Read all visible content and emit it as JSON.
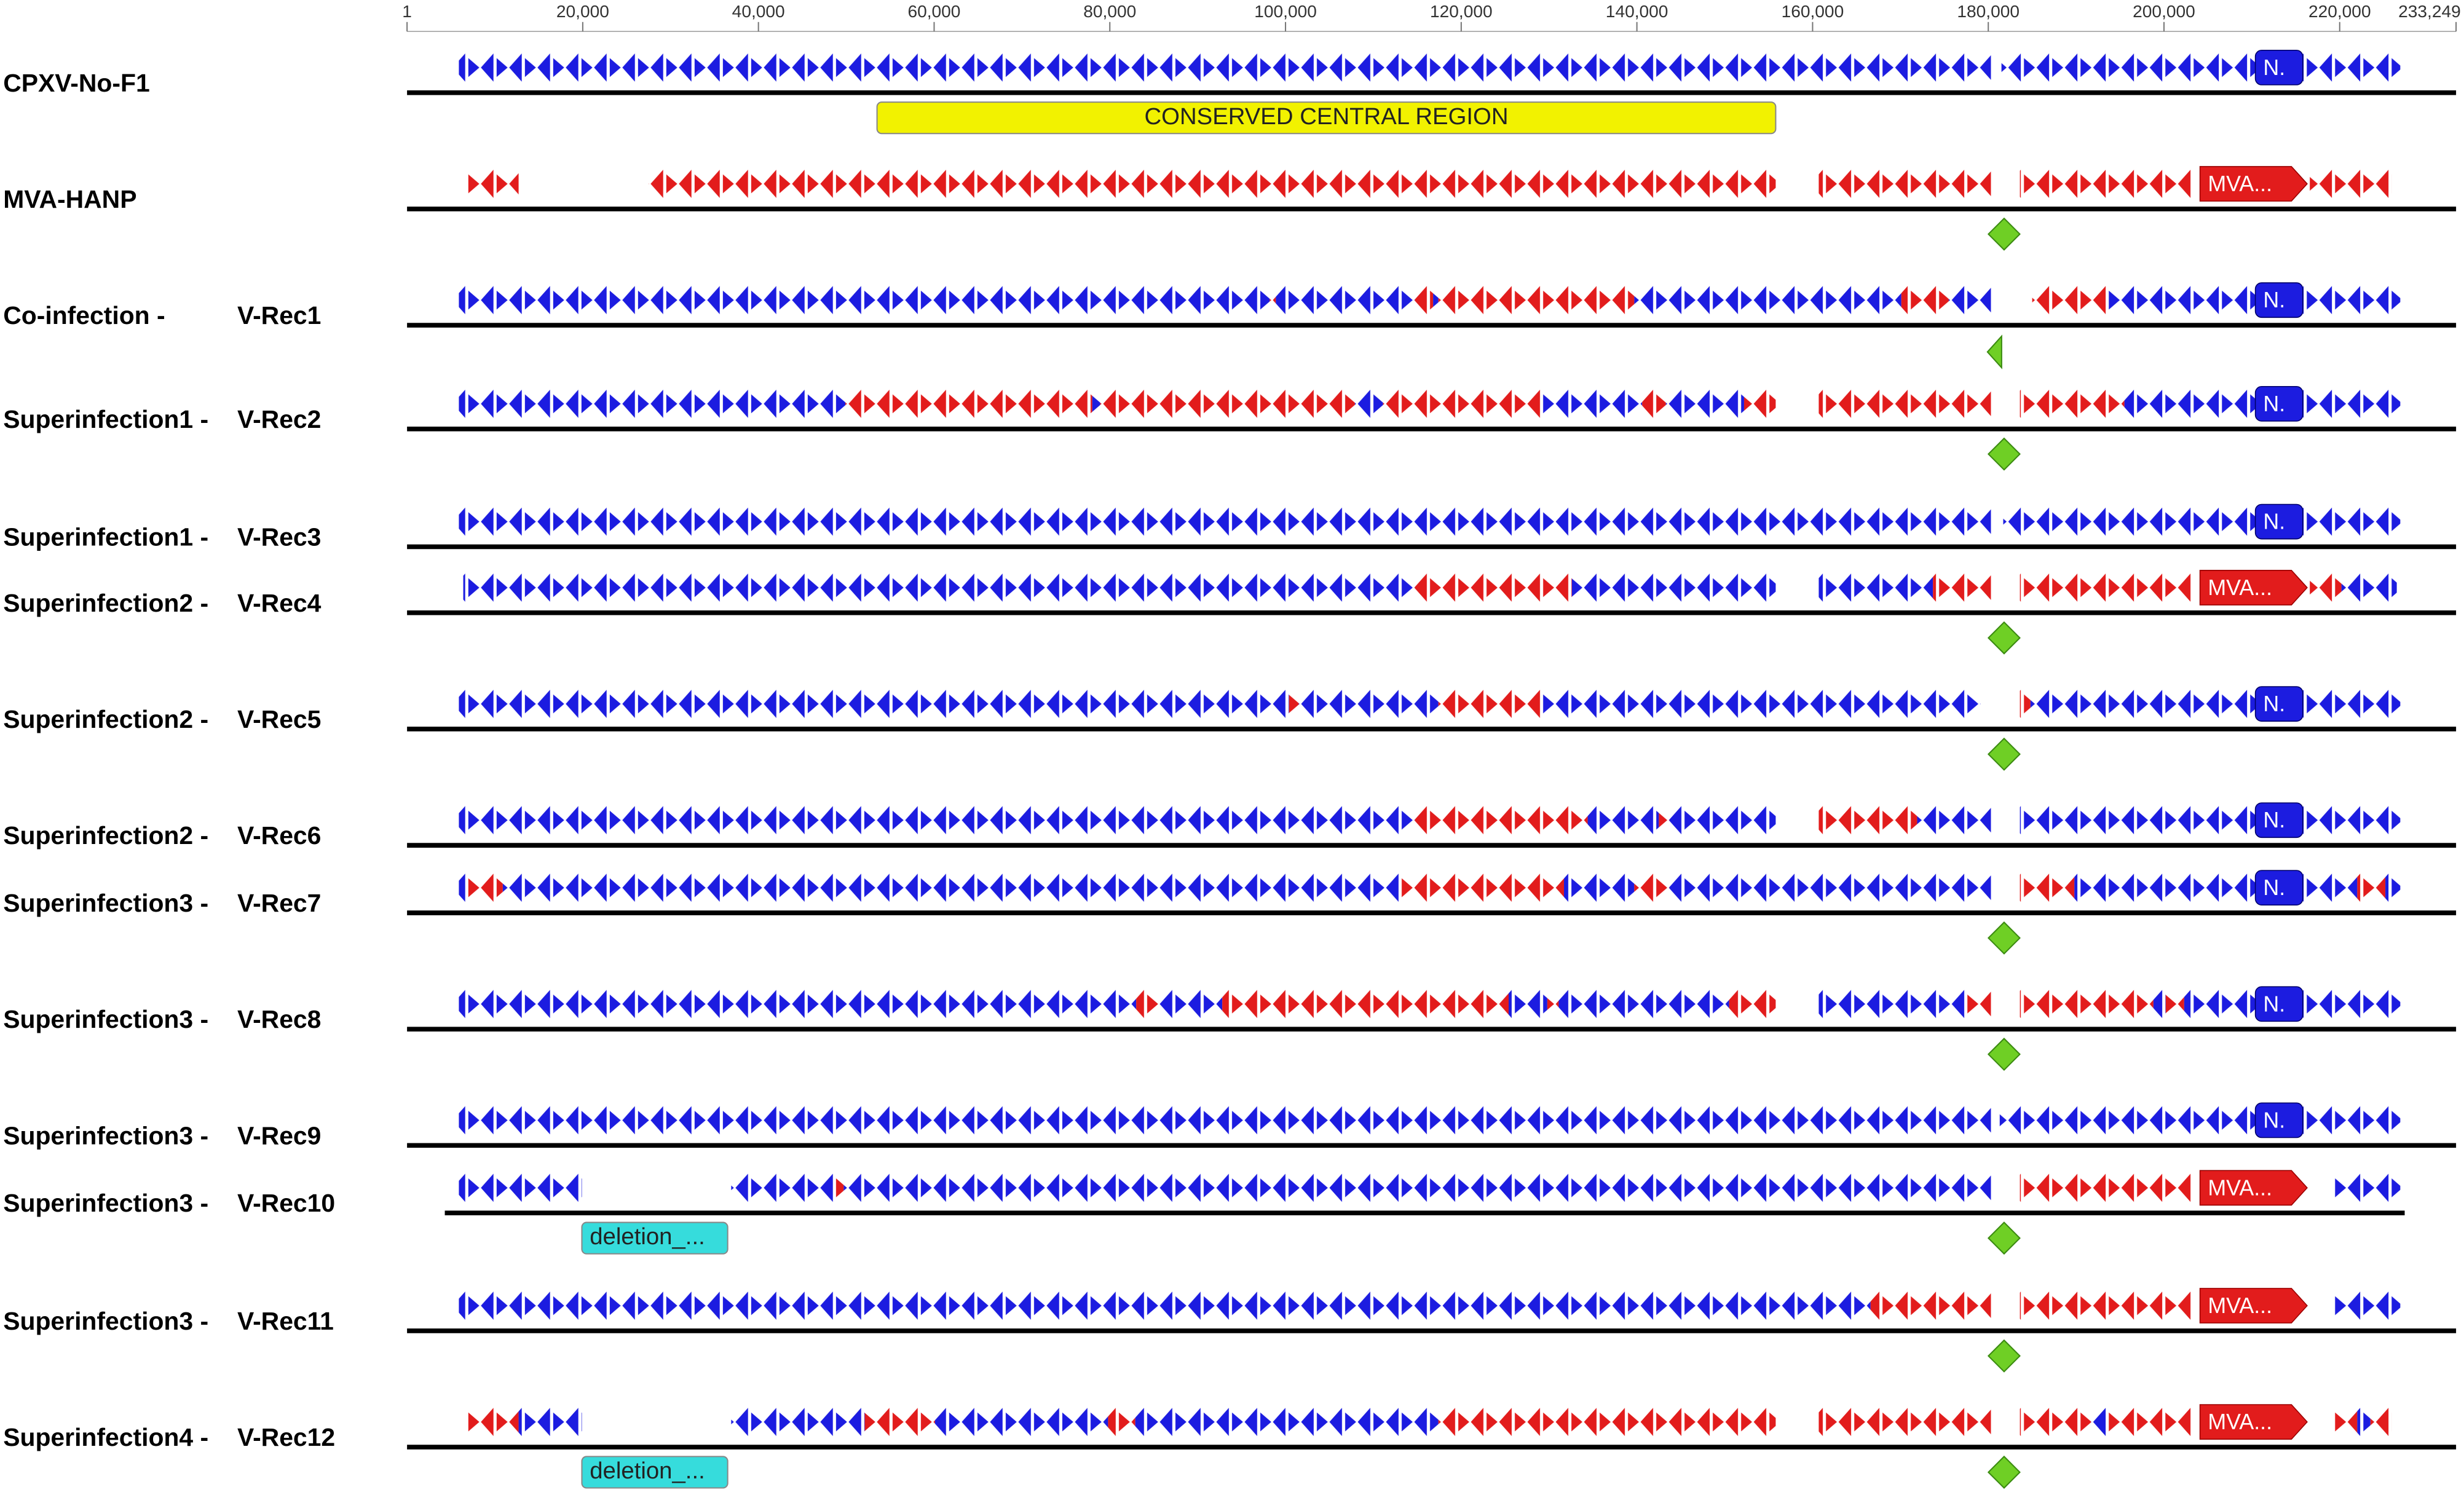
{
  "ruler": {
    "range": [
      1,
      233249
    ],
    "ticks": [
      1,
      {
        "value": 20000,
        "label": "20,000"
      },
      {
        "value": 40000,
        "label": "40,000"
      },
      {
        "value": 60000,
        "label": "60,000"
      },
      {
        "value": 80000,
        "label": "80,000"
      },
      {
        "value": 100000,
        "label": "100,000"
      },
      {
        "value": 120000,
        "label": "120,000"
      },
      {
        "value": 140000,
        "label": "140,000"
      },
      {
        "value": 160000,
        "label": "160,000"
      },
      {
        "value": 180000,
        "label": "180,000"
      },
      {
        "value": 200000,
        "label": "200,000"
      },
      {
        "value": 220000,
        "label": "220,000"
      },
      {
        "value": 233249,
        "label": "233,249"
      }
    ]
  },
  "palette": {
    "b": "#1c1ce0",
    "r": "#e21c1c",
    "g": "#6fcf25",
    "y": "#f2f200",
    "c": "#36dcdc"
  },
  "tracks": [
    {
      "label": "CPXV-No-F1",
      "regions": [
        [
          5900,
          180300,
          "b"
        ],
        [
          181500,
          226900,
          "b"
        ]
      ],
      "features": [
        {
          "label": "N.",
          "start": 210400,
          "end": 215800,
          "color": "b"
        }
      ],
      "under": {
        "label": "CONSERVED CENTRAL REGION",
        "start": 53500,
        "end": 155800,
        "color": "y"
      }
    },
    {
      "label": "MVA-HANP",
      "regions": [
        [
          6800,
          12700,
          "r"
        ],
        [
          27500,
          155800,
          "r"
        ],
        [
          160700,
          180300,
          "r"
        ],
        [
          183600,
          203200,
          "r"
        ],
        [
          216600,
          225900,
          "r"
        ]
      ],
      "features": [
        {
          "label": "MVA...",
          "start": 204100,
          "end": 216300,
          "color": "r"
        }
      ],
      "marker": 181800
    },
    {
      "label": "Co-infection -",
      "name": "V-Rec1",
      "regions": [
        [
          5900,
          98200,
          "b"
        ],
        [
          98200,
          98900,
          "r"
        ],
        [
          98900,
          114700,
          "b"
        ],
        [
          114700,
          116800,
          "r"
        ],
        [
          116800,
          117400,
          "b"
        ],
        [
          117400,
          139700,
          "r"
        ],
        [
          139700,
          170100,
          "b"
        ],
        [
          170100,
          175500,
          "r"
        ],
        [
          175500,
          180300,
          "b"
        ],
        [
          185000,
          193400,
          "r"
        ],
        [
          193400,
          226900,
          "b"
        ]
      ],
      "features": [
        {
          "label": "N.",
          "start": 210400,
          "end": 215800,
          "color": "b"
        }
      ],
      "marker": 180800,
      "marker_shape": "half"
    },
    {
      "label": "Superinfection1 -",
      "name": "V-Rec2",
      "regions": [
        [
          5900,
          49900,
          "b"
        ],
        [
          49900,
          78000,
          "r"
        ],
        [
          78000,
          78900,
          "b"
        ],
        [
          78900,
          107900,
          "r"
        ],
        [
          107900,
          111100,
          "b"
        ],
        [
          111100,
          129000,
          "r"
        ],
        [
          129000,
          140600,
          "b"
        ],
        [
          140600,
          143300,
          "r"
        ],
        [
          143300,
          152200,
          "b"
        ],
        [
          152200,
          155800,
          "r"
        ],
        [
          160700,
          180300,
          "r"
        ],
        [
          183600,
          195500,
          "r"
        ],
        [
          195500,
          226900,
          "b"
        ]
      ],
      "features": [
        {
          "label": "N.",
          "start": 210400,
          "end": 215800,
          "color": "b"
        }
      ],
      "marker": 181800
    },
    {
      "label": "Superinfection1 -",
      "name": "V-Rec3",
      "regions": [
        [
          5900,
          180300,
          "b"
        ],
        [
          181700,
          226900,
          "b"
        ]
      ],
      "features": [
        {
          "label": "N.",
          "start": 210400,
          "end": 215800,
          "color": "b"
        }
      ]
    },
    {
      "label": "Superinfection2 -",
      "name": "V-Rec4",
      "regions": [
        [
          6400,
          114700,
          "b"
        ],
        [
          114700,
          132600,
          "r"
        ],
        [
          132600,
          155800,
          "b"
        ],
        [
          160700,
          173700,
          "b"
        ],
        [
          173700,
          180300,
          "r"
        ],
        [
          183600,
          203200,
          "r"
        ],
        [
          216600,
          220200,
          "r"
        ],
        [
          220200,
          226500,
          "b"
        ]
      ],
      "features": [
        {
          "label": "MVA...",
          "start": 204100,
          "end": 216300,
          "color": "r"
        }
      ],
      "marker": 181800
    },
    {
      "label": "Superinfection2 -",
      "name": "V-Rec5",
      "regions": [
        [
          5900,
          100400,
          "b"
        ],
        [
          100400,
          101500,
          "r"
        ],
        [
          101500,
          117400,
          "b"
        ],
        [
          117400,
          129000,
          "r"
        ],
        [
          129000,
          179100,
          "b"
        ],
        [
          183600,
          184800,
          "r"
        ],
        [
          184800,
          226900,
          "b"
        ]
      ],
      "features": [
        {
          "label": "N.",
          "start": 210400,
          "end": 215800,
          "color": "b"
        }
      ],
      "marker": 181800
    },
    {
      "label": "Superinfection2 -",
      "name": "V-Rec6",
      "regions": [
        [
          5900,
          114700,
          "b"
        ],
        [
          114700,
          134400,
          "r"
        ],
        [
          134400,
          142500,
          "b"
        ],
        [
          142500,
          143700,
          "r"
        ],
        [
          143700,
          155800,
          "b"
        ],
        [
          160700,
          171900,
          "r"
        ],
        [
          171900,
          180300,
          "b"
        ],
        [
          183600,
          226900,
          "b"
        ]
      ],
      "features": [
        {
          "label": "N.",
          "start": 210400,
          "end": 215800,
          "color": "b"
        }
      ]
    },
    {
      "label": "Superinfection3 -",
      "name": "V-Rec7",
      "regions": [
        [
          5900,
          6800,
          "b"
        ],
        [
          6800,
          10900,
          "r"
        ],
        [
          10900,
          112900,
          "b"
        ],
        [
          112900,
          131700,
          "r"
        ],
        [
          131700,
          139700,
          "b"
        ],
        [
          139700,
          143700,
          "r"
        ],
        [
          143700,
          180300,
          "b"
        ],
        [
          183600,
          189800,
          "r"
        ],
        [
          189800,
          222000,
          "b"
        ],
        [
          222000,
          225200,
          "r"
        ],
        [
          225200,
          226900,
          "b"
        ]
      ],
      "features": [
        {
          "label": "N.",
          "start": 210400,
          "end": 215800,
          "color": "b"
        }
      ],
      "marker": 181800
    },
    {
      "label": "Superinfection3 -",
      "name": "V-Rec8",
      "regions": [
        [
          5900,
          83000,
          "b"
        ],
        [
          83000,
          85500,
          "r"
        ],
        [
          85500,
          92800,
          "b"
        ],
        [
          92800,
          125400,
          "r"
        ],
        [
          125400,
          129800,
          "b"
        ],
        [
          129800,
          131100,
          "r"
        ],
        [
          131100,
          150500,
          "b"
        ],
        [
          150500,
          155800,
          "r"
        ],
        [
          160700,
          177300,
          "b"
        ],
        [
          177300,
          180300,
          "r"
        ],
        [
          183600,
          198800,
          "r"
        ],
        [
          198800,
          200200,
          "b"
        ],
        [
          200200,
          202300,
          "r"
        ],
        [
          202300,
          226900,
          "b"
        ]
      ],
      "features": [
        {
          "label": "N.",
          "start": 210400,
          "end": 215800,
          "color": "b"
        }
      ],
      "marker": 181800
    },
    {
      "label": "Superinfection3 -",
      "name": "V-Rec9",
      "regions": [
        [
          5900,
          180300,
          "b"
        ],
        [
          181300,
          226900,
          "b"
        ]
      ],
      "features": [
        {
          "label": "N.",
          "start": 210400,
          "end": 215800,
          "color": "b"
        }
      ]
    },
    {
      "label": "Superinfection3 -",
      "name": "V-Rec10",
      "span": [
        4300,
        227400
      ],
      "regions": [
        [
          5900,
          19900,
          "b"
        ],
        [
          36900,
          48500,
          "b"
        ],
        [
          48500,
          49700,
          "r"
        ],
        [
          49700,
          180300,
          "b"
        ],
        [
          183600,
          203200,
          "r"
        ],
        [
          219300,
          226900,
          "b"
        ]
      ],
      "features": [
        {
          "label": "MVA...",
          "start": 204100,
          "end": 216300,
          "color": "r"
        }
      ],
      "under": {
        "label": "deletion_...",
        "start": 19900,
        "end": 36500,
        "color": "c"
      },
      "marker": 181800
    },
    {
      "label": "Superinfection3 -",
      "name": "V-Rec11",
      "regions": [
        [
          5900,
          166600,
          "b"
        ],
        [
          166600,
          180300,
          "r"
        ],
        [
          183600,
          203200,
          "r"
        ],
        [
          219300,
          226900,
          "b"
        ]
      ],
      "features": [
        {
          "label": "MVA...",
          "start": 204100,
          "end": 216300,
          "color": "r"
        }
      ],
      "marker": 181800
    },
    {
      "label": "Superinfection4 -",
      "name": "V-Rec12",
      "regions": [
        [
          6800,
          12700,
          "r"
        ],
        [
          12700,
          19900,
          "b"
        ],
        [
          36900,
          52100,
          "b"
        ],
        [
          52100,
          60100,
          "r"
        ],
        [
          60100,
          79800,
          "b"
        ],
        [
          79800,
          82900,
          "r"
        ],
        [
          82900,
          117400,
          "b"
        ],
        [
          117400,
          155800,
          "r"
        ],
        [
          160700,
          180300,
          "r"
        ],
        [
          183600,
          191700,
          "r"
        ],
        [
          191700,
          193400,
          "b"
        ],
        [
          193400,
          203200,
          "r"
        ],
        [
          219300,
          222000,
          "r"
        ],
        [
          222000,
          223500,
          "b"
        ],
        [
          223500,
          225900,
          "r"
        ]
      ],
      "features": [
        {
          "label": "MVA...",
          "start": 204100,
          "end": 216300,
          "color": "r"
        }
      ],
      "under": {
        "label": "deletion_...",
        "start": 19900,
        "end": 36500,
        "color": "c"
      },
      "marker": 181800
    }
  ]
}
